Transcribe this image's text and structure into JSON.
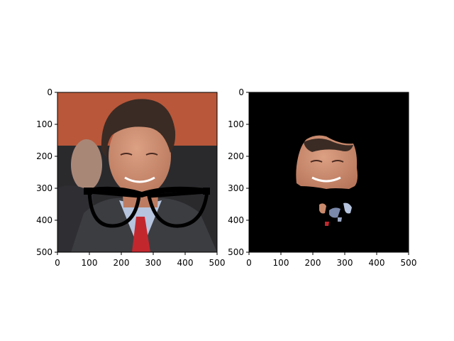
{
  "chart_data": [
    {
      "type": "image",
      "title": "",
      "xlabel": "",
      "ylabel": "",
      "xlim": [
        0,
        500
      ],
      "ylim": [
        500,
        0
      ],
      "xticks": [
        0,
        100,
        200,
        300,
        400,
        500
      ],
      "yticks": [
        0,
        100,
        200,
        300,
        400,
        500
      ],
      "content": "photo-with-glasses-overlay"
    },
    {
      "type": "image",
      "title": "",
      "xlabel": "",
      "ylabel": "",
      "xlim": [
        0,
        500
      ],
      "ylim": [
        500,
        0
      ],
      "xticks": [
        0,
        100,
        200,
        300,
        400,
        500
      ],
      "yticks": [
        0,
        100,
        200,
        300,
        400,
        500
      ],
      "content": "segmentation-mask-on-black"
    }
  ],
  "colors": {
    "background": "#b9573a",
    "dark_band": "#2a2a2d",
    "suit": "#3c3d41",
    "skin": "#c98a6c",
    "hair": "#3a2b24",
    "tie": "#c3272e",
    "shirt": "#b6c4de",
    "glasses": "#000000",
    "mask_background": "#000000"
  }
}
